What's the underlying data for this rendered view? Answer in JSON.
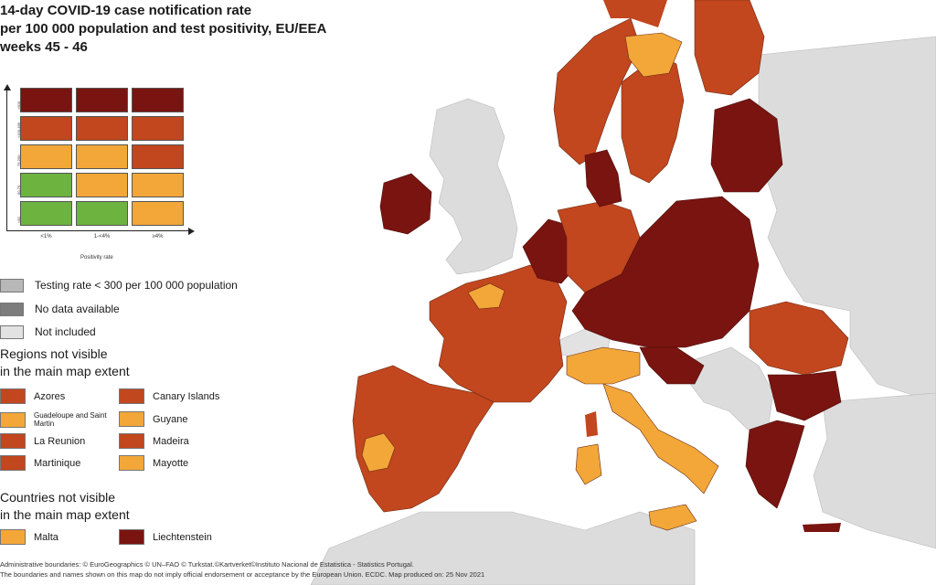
{
  "title": {
    "line1": "14-day COVID-19 case notification rate",
    "line2": "per 100 000 population and test positivity, EU/EEA",
    "line3": "weeks 45 - 46"
  },
  "matrix": {
    "rows": [
      [
        ">500",
        [
          "#7a1410",
          "#7a1410",
          "#7a1410"
        ]
      ],
      [
        ">200-499",
        [
          "#c2461e",
          "#c2461e",
          "#c2461e"
        ]
      ],
      [
        "75-200",
        [
          "#f2a738",
          "#f2a738",
          "#c2461e"
        ]
      ],
      [
        "50-75",
        [
          "#6db33f",
          "#f2a738",
          "#f2a738"
        ]
      ],
      [
        "<50",
        [
          "#6db33f",
          "#6db33f",
          "#f2a738"
        ]
      ]
    ],
    "x_ticks": [
      "<1%",
      "1-<4%",
      "≥4%"
    ],
    "x_axis_label": "Positivity rate"
  },
  "status_legend": [
    {
      "label": "Testing rate < 300 per 100 000 population",
      "color": "#b8b8b8"
    },
    {
      "label": "No data available",
      "color": "#7d7d7d"
    },
    {
      "label": "Not included",
      "color": "#e2e2e2"
    }
  ],
  "regions_section": {
    "line1": "Regions not visible",
    "line2": "in the main map extent"
  },
  "regions": [
    {
      "label": "Azores",
      "color": "#c2461e"
    },
    {
      "label": "Canary Islands",
      "color": "#c2461e"
    },
    {
      "label": "Guadeloupe and Saint Martin",
      "color": "#f2a738"
    },
    {
      "label": "Guyane",
      "color": "#f2a738"
    },
    {
      "label": "La Reunion",
      "color": "#c2461e"
    },
    {
      "label": "Madeira",
      "color": "#c2461e"
    },
    {
      "label": "Martinique",
      "color": "#c2461e"
    },
    {
      "label": "Mayotte",
      "color": "#f2a738"
    }
  ],
  "countries_section": {
    "line1": "Countries not visible",
    "line2": "in the main map extent"
  },
  "countries": [
    {
      "label": "Malta",
      "color": "#f2a738"
    },
    {
      "label": "Liechtenstein",
      "color": "#7a1410"
    }
  ],
  "footer": {
    "line1": "Administrative boundaries: © EuroGeographics © UN–FAO © Turkstat.©Kartverket©Instituto Nacional de Estatistica - Statistics Portugal.",
    "line2": "The boundaries and names shown on this map do not imply official endorsement or acceptance by the European Union. ECDC. Map produced on: 25 Nov 2021"
  },
  "colors": {
    "dark_red": "#7a1410",
    "red": "#c2461e",
    "orange": "#f2a738",
    "green": "#6db33f",
    "grey_not_included": "#e2e2e2",
    "grey_land": "#d6d6d6",
    "sea": "#ffffff"
  }
}
